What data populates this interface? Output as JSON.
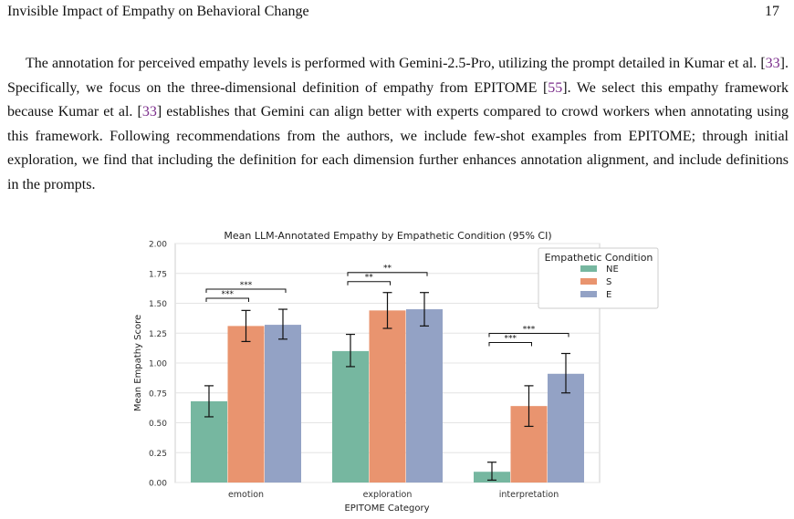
{
  "header": {
    "title": "Invisible Impact of Empathy on Behavioral Change",
    "page_number": "17"
  },
  "paragraph": {
    "p1": "The annotation for perceived empathy levels is performed with Gemini-2.5-Pro, utilizing the prompt detailed in Kumar et al. [",
    "c1": "33",
    "p2": "]. Specifically, we focus on the three-dimensional definition of empathy from EPITOME [",
    "c2": "55",
    "p3": "]. We select this empathy framework because Kumar et al. [",
    "c3": "33",
    "p4": "] establishes that Gemini can align better with experts compared to crowd workers when annotating using this framework. Following recommendations from the authors, we include few-shot examples from EPITOME; through initial exploration, we find that including the definition for each dimension further enhances annotation alignment, and include definitions in the prompts."
  },
  "chart_data": {
    "type": "bar",
    "title": "Mean LLM-Annotated Empathy by Empathetic Condition (95% CI)",
    "xlabel": "EPITOME Category",
    "ylabel": "Mean Empathy Score",
    "ylim": [
      0,
      2.0
    ],
    "yticks": [
      "0.00",
      "0.25",
      "0.50",
      "0.75",
      "1.00",
      "1.25",
      "1.50",
      "1.75",
      "2.00"
    ],
    "grid": true,
    "legend_title": "Empathetic Condition",
    "legend_position": "top-right",
    "categories": [
      "emotion",
      "exploration",
      "interpretation"
    ],
    "series": [
      {
        "name": "NE",
        "color": "#76b7a0",
        "values": [
          0.68,
          1.1,
          0.09
        ],
        "ci_low": [
          0.55,
          0.97,
          0.02
        ],
        "ci_high": [
          0.81,
          1.24,
          0.17
        ]
      },
      {
        "name": "S",
        "color": "#e9946f",
        "values": [
          1.31,
          1.44,
          0.64
        ],
        "ci_low": [
          1.18,
          1.29,
          0.47
        ],
        "ci_high": [
          1.44,
          1.59,
          0.81
        ]
      },
      {
        "name": "E",
        "color": "#93a2c5",
        "values": [
          1.32,
          1.45,
          0.91
        ],
        "ci_low": [
          1.2,
          1.31,
          0.75
        ],
        "ci_high": [
          1.45,
          1.59,
          1.08
        ]
      }
    ],
    "significance": [
      {
        "category": 0,
        "from": 0,
        "to": 1,
        "label": "***"
      },
      {
        "category": 0,
        "from": 0,
        "to": 2,
        "label": "***"
      },
      {
        "category": 1,
        "from": 0,
        "to": 1,
        "label": "**"
      },
      {
        "category": 1,
        "from": 0,
        "to": 2,
        "label": "**"
      },
      {
        "category": 2,
        "from": 0,
        "to": 1,
        "label": "***"
      },
      {
        "category": 2,
        "from": 0,
        "to": 2,
        "label": "***"
      }
    ]
  }
}
